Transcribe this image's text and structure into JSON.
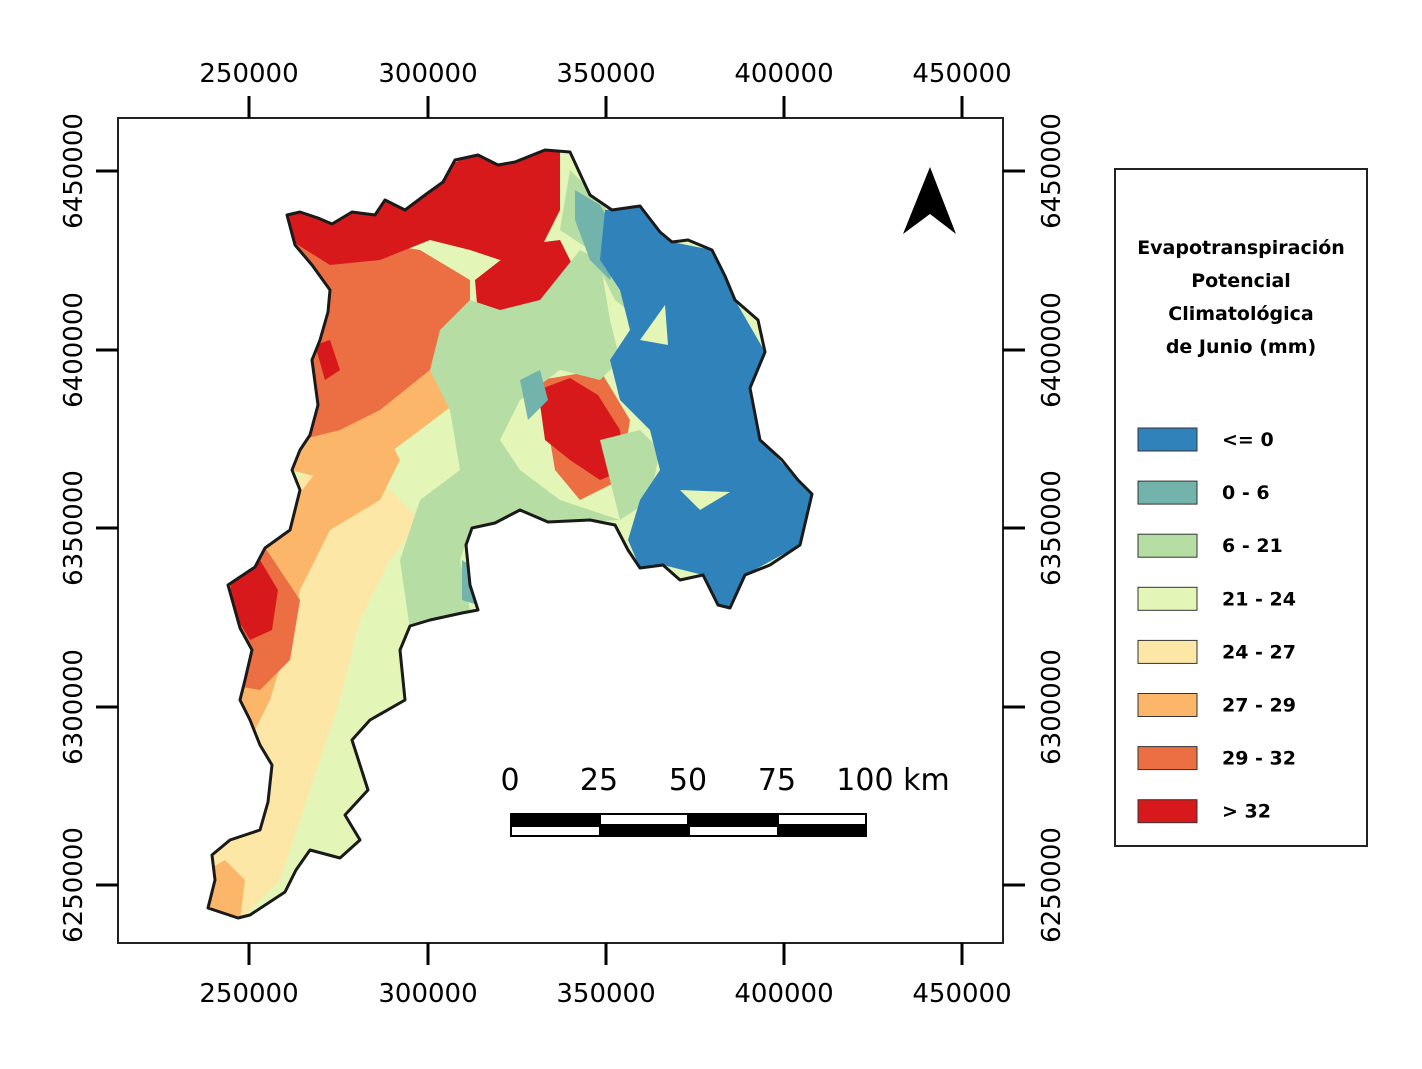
{
  "axes": {
    "x_ticks": [
      "250000",
      "300000",
      "350000",
      "400000",
      "450000"
    ],
    "y_ticks": [
      "6450000",
      "6400000",
      "6350000",
      "6300000",
      "6250000"
    ]
  },
  "legend": {
    "title_lines": [
      "Evapotranspiración",
      "Potencial",
      "Climatológica",
      "de Junio (mm)"
    ],
    "classes": [
      {
        "label": "<= 0",
        "color": "#2f83ba"
      },
      {
        "label": "0 - 6",
        "color": "#72b3ab"
      },
      {
        "label": "6 - 21",
        "color": "#b6dea4"
      },
      {
        "label": "21 - 24",
        "color": "#e4f5b8"
      },
      {
        "label": "24 - 27",
        "color": "#fde7a6"
      },
      {
        "label": "27 - 29",
        "color": "#fbb66a"
      },
      {
        "label": "29 - 32",
        "color": "#ec6f44"
      },
      {
        "label": "> 32",
        "color": "#d7191c"
      }
    ]
  },
  "scale_bar": {
    "labels": [
      "0",
      "25",
      "50",
      "75",
      "100 km"
    ]
  },
  "north_arrow": {
    "icon": "north-arrow-icon"
  },
  "colors": {
    "frame": "#222222",
    "outline": "#1a1a1a"
  }
}
